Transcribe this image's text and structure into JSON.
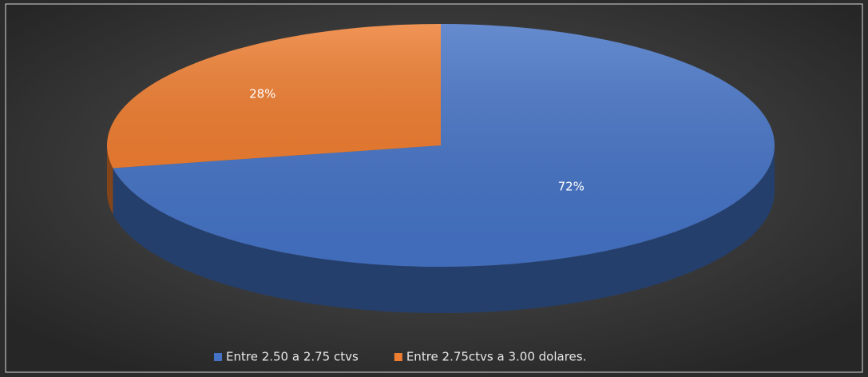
{
  "chart_data": {
    "type": "pie",
    "categories": [
      "Entre 2.50 a 2.75 ctvs",
      "Entre 2.75ctvs a 3.00 dolares."
    ],
    "values": [
      72,
      28
    ],
    "value_labels": [
      "72%",
      "28%"
    ],
    "colors": [
      "#4472c4",
      "#ed7d31"
    ],
    "legend": "bottom"
  }
}
